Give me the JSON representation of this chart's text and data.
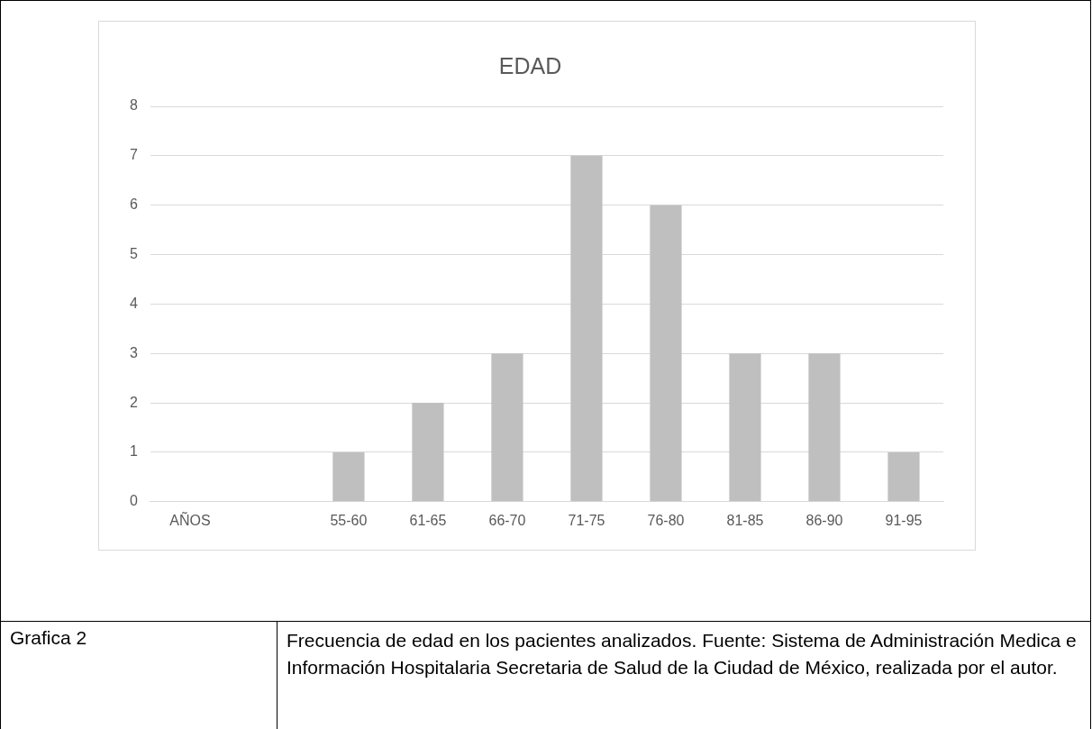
{
  "chart_data": {
    "type": "bar",
    "title": "EDAD",
    "categories": [
      "AÑOS",
      null,
      "55-60",
      "61-65",
      "66-70",
      "71-75",
      "76-80",
      "81-85",
      "86-90",
      "91-95"
    ],
    "values": [
      null,
      null,
      1,
      2,
      3,
      7,
      6,
      3,
      3,
      1
    ],
    "color": "#bfbfbf",
    "ylim": [
      0,
      8
    ],
    "yticks": [
      0,
      1,
      2,
      3,
      4,
      5,
      6,
      7,
      8
    ],
    "grid": "y",
    "legend": false,
    "annotations": [
      "Grafica 2",
      "Frecuencia de edad en los pacientes analizados. Fuente: Sistema de Administración Medica e Información Hospitalaria Secretaria de Salud de la Ciudad de México, realizada por el autor."
    ]
  }
}
